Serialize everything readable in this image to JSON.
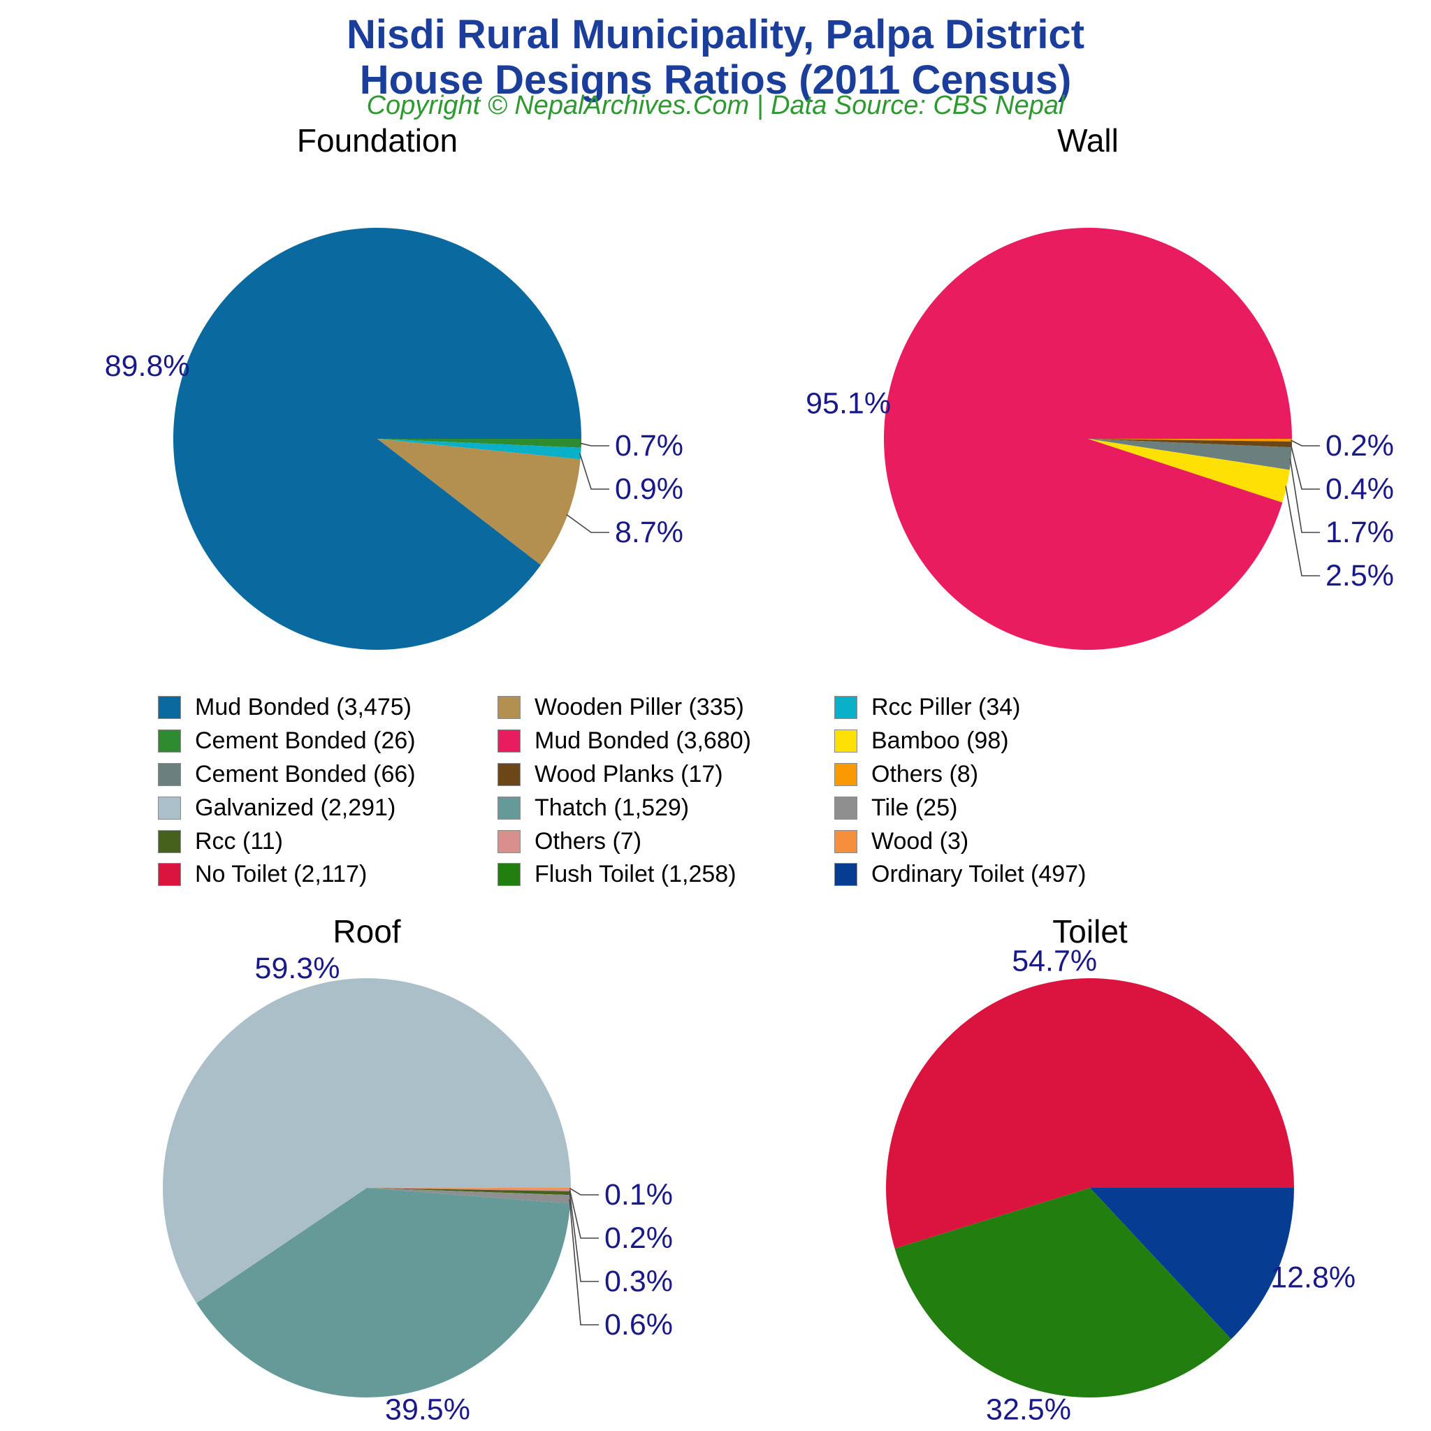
{
  "page": {
    "title_line1": "Nisdi Rural Municipality, Palpa District",
    "title_line2": "House Designs Ratios (2011 Census)",
    "subtitle": "Copyright © NepalArchives.Com | Data Source: CBS Nepal",
    "colors": {
      "title": "#1C3E9B",
      "subtitle": "#2E9930",
      "pct_label": "#191989",
      "leader_line": "#444444",
      "background": "#FFFFFF"
    }
  },
  "chart_data": [
    {
      "id": "foundation",
      "type": "pie",
      "title": "Foundation",
      "slices": [
        {
          "label": "Cement Bonded",
          "value": 26,
          "pct": "0.7%",
          "color": "#2F8B2F"
        },
        {
          "label": "Rcc Piller",
          "value": 34,
          "pct": "0.9%",
          "color": "#09B0C7"
        },
        {
          "label": "Wooden Piller",
          "value": 335,
          "pct": "8.7%",
          "color": "#B39050"
        },
        {
          "label": "Mud Bonded",
          "value": 3475,
          "pct": "89.8%",
          "color": "#0A6A9F"
        }
      ]
    },
    {
      "id": "wall",
      "type": "pie",
      "title": "Wall",
      "slices": [
        {
          "label": "Others",
          "value": 8,
          "pct": "0.2%",
          "color": "#FB9903"
        },
        {
          "label": "Wood Planks",
          "value": 17,
          "pct": "0.4%",
          "color": "#6B4616"
        },
        {
          "label": "Cement Bonded",
          "value": 66,
          "pct": "1.7%",
          "color": "#6B7F7E"
        },
        {
          "label": "Bamboo",
          "value": 98,
          "pct": "2.5%",
          "color": "#FFE005"
        },
        {
          "label": "Mud Bonded",
          "value": 3680,
          "pct": "95.1%",
          "color": "#EA1C60"
        }
      ]
    },
    {
      "id": "roof",
      "type": "pie",
      "title": "Roof",
      "slices": [
        {
          "label": "Wood",
          "value": 3,
          "pct": "0.1%",
          "color": "#F68F3B"
        },
        {
          "label": "Others",
          "value": 7,
          "pct": "0.2%",
          "color": "#D98F8C"
        },
        {
          "label": "Rcc",
          "value": 11,
          "pct": "0.3%",
          "color": "#45611C"
        },
        {
          "label": "Tile",
          "value": 25,
          "pct": "0.6%",
          "color": "#8F8F8F"
        },
        {
          "label": "Thatch",
          "value": 1529,
          "pct": "39.5%",
          "color": "#669A99"
        },
        {
          "label": "Galvanized",
          "value": 2291,
          "pct": "59.3%",
          "color": "#ABBFC9"
        }
      ]
    },
    {
      "id": "toilet",
      "type": "pie",
      "title": "Toilet",
      "slices": [
        {
          "label": "Ordinary Toilet",
          "value": 497,
          "pct": "12.8%",
          "color": "#063C92"
        },
        {
          "label": "Flush Toilet",
          "value": 1258,
          "pct": "32.5%",
          "color": "#227E0E"
        },
        {
          "label": "No Toilet",
          "value": 2117,
          "pct": "54.7%",
          "color": "#DA143F"
        }
      ]
    }
  ],
  "legend": {
    "columns": [
      [
        {
          "label": "Mud Bonded (3,475)",
          "color": "#0A6A9F"
        },
        {
          "label": "Cement Bonded (26)",
          "color": "#2F8B2F"
        },
        {
          "label": "Cement Bonded (66)",
          "color": "#6B7F7E"
        },
        {
          "label": "Galvanized (2,291)",
          "color": "#ABBFC9"
        },
        {
          "label": "Rcc (11)",
          "color": "#45611C"
        },
        {
          "label": "No Toilet (2,117)",
          "color": "#DA143F"
        }
      ],
      [
        {
          "label": "Wooden Piller (335)",
          "color": "#B39050"
        },
        {
          "label": "Mud Bonded (3,680)",
          "color": "#EA1C60"
        },
        {
          "label": "Wood Planks (17)",
          "color": "#6B4616"
        },
        {
          "label": "Thatch (1,529)",
          "color": "#669A99"
        },
        {
          "label": "Others (7)",
          "color": "#D98F8C"
        },
        {
          "label": "Flush Toilet (1,258)",
          "color": "#227E0E"
        }
      ],
      [
        {
          "label": "Rcc Piller (34)",
          "color": "#09B0C7"
        },
        {
          "label": "Bamboo (98)",
          "color": "#FFE005"
        },
        {
          "label": "Others (8)",
          "color": "#FB9903"
        },
        {
          "label": "Tile (25)",
          "color": "#8F8F8F"
        },
        {
          "label": "Wood (3)",
          "color": "#F68F3B"
        },
        {
          "label": "Ordinary Toilet (497)",
          "color": "#063C92"
        }
      ]
    ]
  }
}
